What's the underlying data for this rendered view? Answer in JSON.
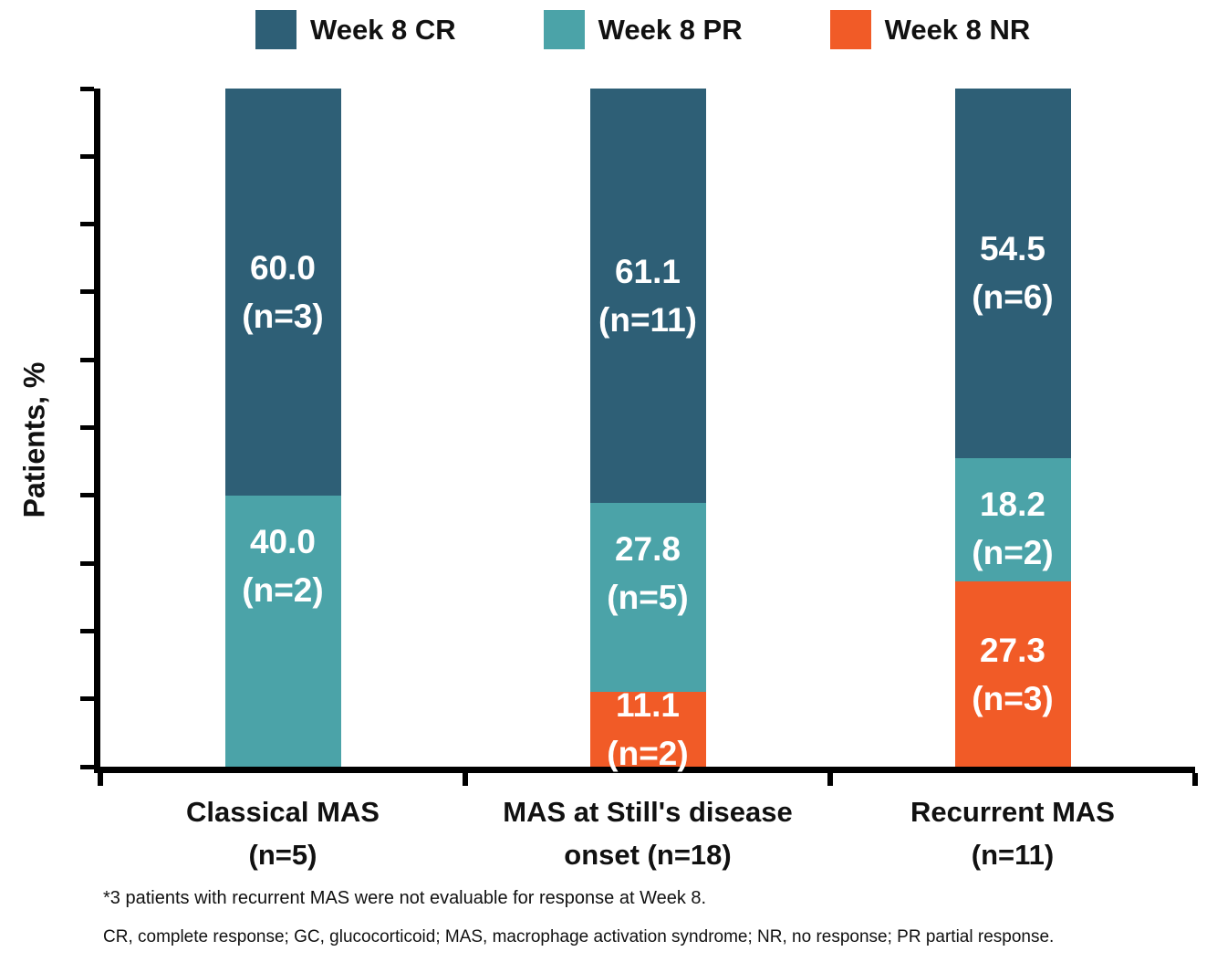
{
  "chart_data": {
    "type": "bar",
    "stacked": true,
    "title": "",
    "xlabel": "",
    "ylabel": "Patients, %",
    "ylim": [
      0,
      100
    ],
    "y_tick_interval": 10,
    "y_tick_labels_visible": false,
    "grid": false,
    "legend_position": "top",
    "categories": [
      {
        "name": "Classical MAS (n=5)",
        "lines": [
          "Classical MAS",
          "(n=5)"
        ]
      },
      {
        "name": "MAS at Still's disease onset (n=18)",
        "lines": [
          "MAS at Still's disease",
          "onset (n=18)"
        ]
      },
      {
        "name": "Recurrent MAS (n=11)",
        "lines": [
          "Recurrent MAS",
          "(n=11)"
        ]
      }
    ],
    "series": [
      {
        "name": "Week 8 CR",
        "color": "#2E5F76",
        "values": [
          60.0,
          61.1,
          54.5
        ],
        "counts": [
          3,
          11,
          6
        ],
        "labels": [
          [
            "60.0",
            "(n=3)"
          ],
          [
            "61.1",
            "(n=11)"
          ],
          [
            "54.5",
            "(n=6)"
          ]
        ]
      },
      {
        "name": "Week 8 PR",
        "color": "#4BA3A8",
        "values": [
          40.0,
          27.8,
          18.2
        ],
        "counts": [
          2,
          5,
          2
        ],
        "labels": [
          [
            "40.0",
            "(n=2)"
          ],
          [
            "27.8",
            "(n=5)"
          ],
          [
            "18.2",
            "(n=2)"
          ]
        ]
      },
      {
        "name": "Week 8 NR",
        "color": "#F15B27",
        "values": [
          0,
          11.1,
          27.3
        ],
        "counts": [
          null,
          2,
          3
        ],
        "labels": [
          null,
          [
            "11.1",
            "(n=2)"
          ],
          [
            "27.3",
            "(n=3)"
          ]
        ]
      }
    ]
  },
  "footnotes": {
    "line1": "*3 patients with recurrent MAS were not evaluable for response at Week 8.",
    "line2": "CR, complete response; GC, glucocorticoid; MAS, macrophage activation syndrome; NR, no response; PR partial response."
  },
  "axis_color": "#000000",
  "text_color": "#111111"
}
